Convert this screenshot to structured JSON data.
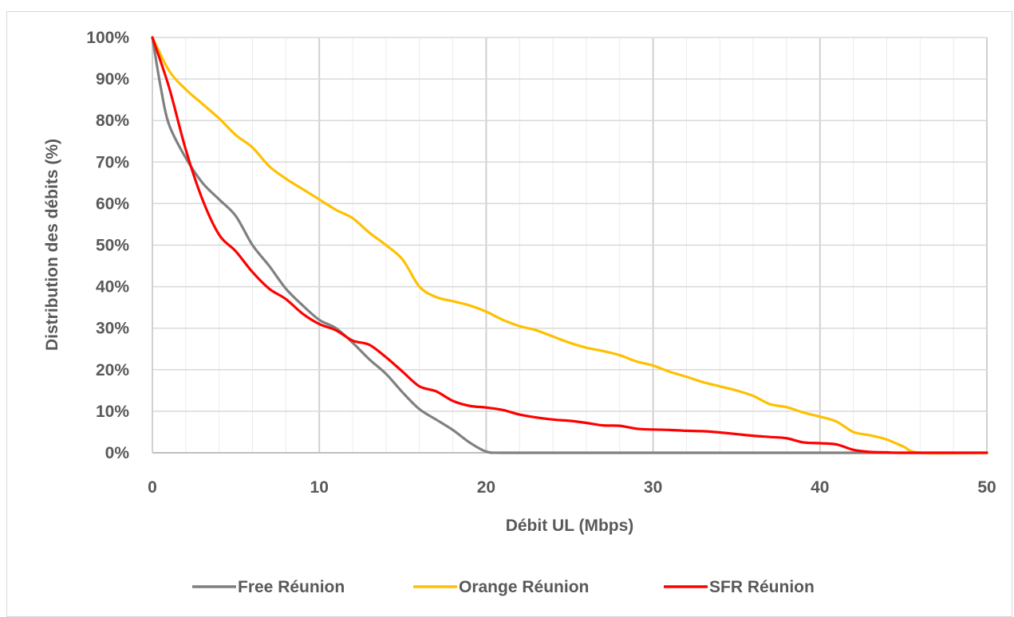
{
  "chart_data": {
    "type": "line",
    "xlabel": "Débit UL (Mbps)",
    "ylabel": "Distribution des débits (%)",
    "xlim": [
      0,
      50
    ],
    "ylim": [
      0,
      100
    ],
    "x_ticks": [
      "0",
      "10",
      "20",
      "30",
      "40",
      "50"
    ],
    "y_ticks": [
      "0%",
      "10%",
      "20%",
      "30%",
      "40%",
      "50%",
      "60%",
      "70%",
      "80%",
      "90%",
      "100%"
    ],
    "grid": true,
    "legend_position": "bottom",
    "series": [
      {
        "name": "Free Réunion",
        "color": "#808080",
        "x": [
          0,
          0.5,
          1,
          2,
          3,
          4,
          5,
          6,
          7,
          8,
          9,
          10,
          11,
          12,
          13,
          14,
          15,
          16,
          17,
          18,
          19,
          20,
          21,
          25,
          30,
          35,
          40,
          45,
          50
        ],
        "y": [
          100,
          88,
          79,
          71,
          65,
          61,
          57,
          50,
          45,
          39.5,
          35.5,
          32,
          30,
          26.5,
          22.5,
          19,
          14.5,
          10.5,
          8,
          5.5,
          2.5,
          0.3,
          0,
          0,
          0,
          0,
          0,
          0,
          0
        ]
      },
      {
        "name": "Orange Réunion",
        "color": "#FFC000",
        "x": [
          0,
          1,
          2,
          3,
          4,
          5,
          6,
          7,
          8,
          9,
          10,
          11,
          12,
          13,
          14,
          15,
          16,
          17,
          18,
          19,
          20,
          21,
          22,
          23,
          24,
          25,
          26,
          27,
          28,
          29,
          30,
          31,
          32,
          33,
          34,
          35,
          36,
          37,
          38,
          39,
          40,
          41,
          42,
          43,
          44,
          45,
          46,
          50
        ],
        "y": [
          100,
          92,
          87.5,
          84,
          80.5,
          76.5,
          73.5,
          69,
          66,
          63.5,
          61,
          58.5,
          56.5,
          53,
          50,
          46.5,
          40,
          37.5,
          36.5,
          35.5,
          34,
          32,
          30.5,
          29.5,
          28,
          26.5,
          25.3,
          24.5,
          23.5,
          22,
          21,
          19.5,
          18.3,
          17,
          16,
          15,
          13.7,
          11.7,
          11,
          9.7,
          8.7,
          7.5,
          5,
          4.2,
          3.2,
          1.5,
          0,
          0
        ]
      },
      {
        "name": "SFR Réunion",
        "color": "#FF0000",
        "x": [
          0,
          1,
          2,
          3,
          4,
          5,
          6,
          7,
          8,
          9,
          10,
          11,
          12,
          13,
          14,
          15,
          16,
          17,
          18,
          19,
          20,
          21,
          22,
          23,
          24,
          25,
          26,
          27,
          28,
          29,
          30,
          31,
          32,
          33,
          34,
          35,
          36,
          37,
          38,
          39,
          40,
          41,
          42,
          43,
          44,
          45,
          50
        ],
        "y": [
          100,
          88,
          73,
          61,
          52.5,
          48.5,
          43.5,
          39.5,
          37,
          33.5,
          31,
          29.5,
          27,
          26,
          23,
          19.5,
          16,
          14.8,
          12.5,
          11.3,
          10.9,
          10.3,
          9.2,
          8.5,
          8,
          7.7,
          7.2,
          6.6,
          6.5,
          5.8,
          5.6,
          5.5,
          5.3,
          5.2,
          4.9,
          4.5,
          4.1,
          3.8,
          3.5,
          2.5,
          2.3,
          2,
          0.7,
          0.2,
          0.1,
          0,
          0
        ]
      }
    ]
  }
}
